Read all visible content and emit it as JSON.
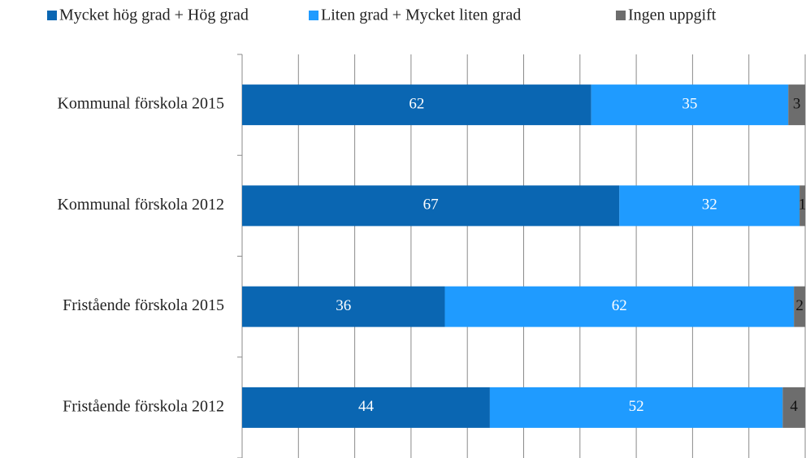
{
  "chart_data": {
    "type": "stacked_bar_horizontal",
    "categories": [
      "Kommunal förskola 2015",
      "Kommunal förskola 2012",
      "Fristående förskola 2015",
      "Fristående förskola 2012"
    ],
    "series": [
      {
        "name": "Mycket hög grad + Hög grad",
        "color": "#0a66b2",
        "values": [
          62,
          67,
          36,
          44
        ]
      },
      {
        "name": "Liten grad + Mycket liten grad",
        "color": "#1f9bff",
        "values": [
          35,
          32,
          62,
          52
        ]
      },
      {
        "name": "Ingen uppgift",
        "color": "#6d6d6d",
        "values": [
          3,
          1,
          2,
          4
        ]
      }
    ],
    "xlim": [
      0,
      100
    ],
    "xticks": [
      0,
      10,
      20,
      30,
      40,
      50,
      60,
      70,
      80,
      90,
      100
    ],
    "grid": true,
    "legend": "top"
  }
}
